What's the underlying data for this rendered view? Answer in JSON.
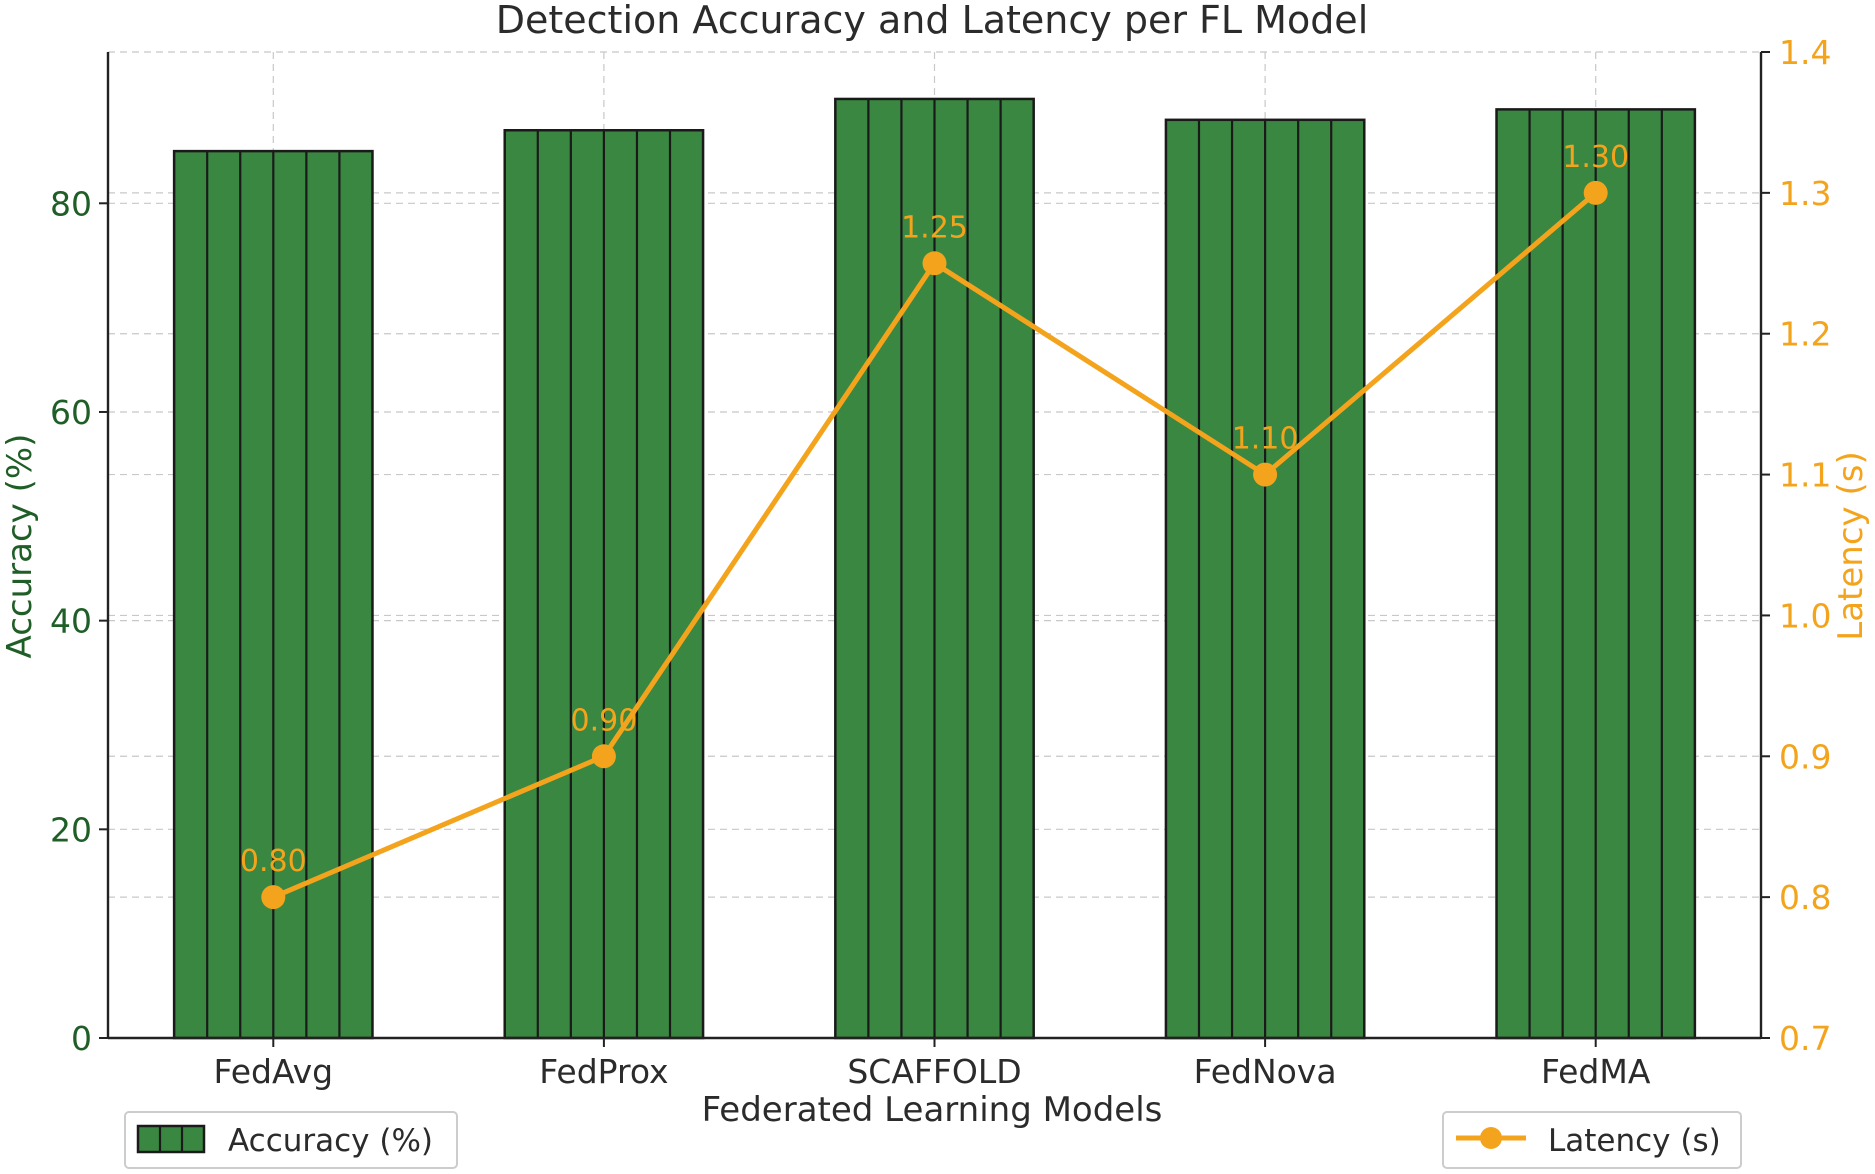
{
  "chart_data": {
    "type": "bar+line",
    "title": "Detection Accuracy and Latency per FL Model",
    "xlabel": "Federated Learning Models",
    "categories": [
      "FedAvg",
      "FedProx",
      "SCAFFOLD",
      "FedNova",
      "FedMA"
    ],
    "series": [
      {
        "name": "Accuracy (%)",
        "type": "bar",
        "axis": "left",
        "values": [
          85,
          87,
          90,
          88,
          89
        ],
        "color": "#3a8741"
      },
      {
        "name": "Latency (s)",
        "type": "line",
        "axis": "right",
        "values": [
          0.8,
          0.9,
          1.25,
          1.1,
          1.3
        ],
        "labels": [
          "0.80",
          "0.90",
          "1.25",
          "1.10",
          "1.30"
        ],
        "color": "#f4a41c"
      }
    ],
    "y_left": {
      "label": "Accuracy (%)",
      "lim": [
        0,
        94.5
      ],
      "ticks": [
        0,
        20,
        40,
        60,
        80
      ],
      "tick_labels": [
        "0",
        "20",
        "40",
        "60",
        "80"
      ],
      "color": "#1f5e26"
    },
    "y_right": {
      "label": "Latency (s)",
      "lim": [
        0.7,
        1.4
      ],
      "ticks": [
        0.7,
        0.8,
        0.9,
        1.0,
        1.1,
        1.2,
        1.3,
        1.4
      ],
      "tick_labels": [
        "0.7",
        "0.8",
        "0.9",
        "1.0",
        "1.1",
        "1.2",
        "1.3",
        "1.4"
      ],
      "color": "#f4a41c"
    },
    "grid": true,
    "legends": [
      {
        "label": "Accuracy (%)",
        "placement": "bottom-left"
      },
      {
        "label": "Latency (s)",
        "placement": "bottom-right"
      }
    ]
  }
}
